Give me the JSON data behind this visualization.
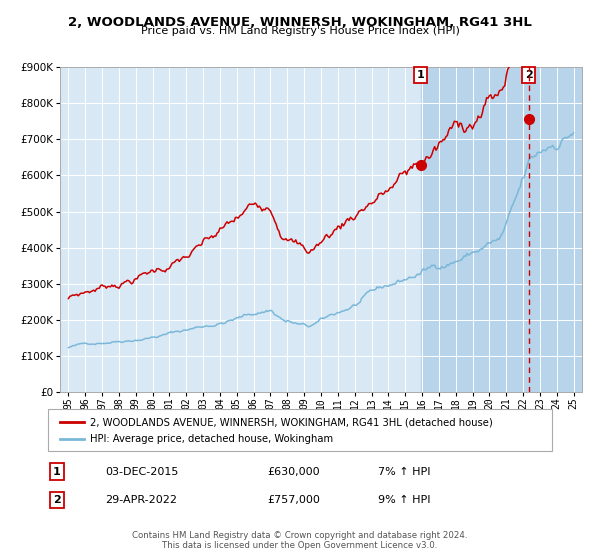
{
  "title1": "2, WOODLANDS AVENUE, WINNERSH, WOKINGHAM, RG41 3HL",
  "title2": "Price paid vs. HM Land Registry's House Price Index (HPI)",
  "legend_label1": "2, WOODLANDS AVENUE, WINNERSH, WOKINGHAM, RG41 3HL (detached house)",
  "legend_label2": "HPI: Average price, detached house, Wokingham",
  "annotation1_label": "1",
  "annotation1_date": "03-DEC-2015",
  "annotation1_price": "£630,000",
  "annotation1_hpi": "7% ↑ HPI",
  "annotation1_year": 2015.92,
  "annotation1_value": 630000,
  "annotation2_label": "2",
  "annotation2_date": "29-APR-2022",
  "annotation2_price": "£757,000",
  "annotation2_hpi": "9% ↑ HPI",
  "annotation2_year": 2022.33,
  "annotation2_value": 757000,
  "hpi_line_color": "#7ab8d9",
  "price_line_color": "#cc0000",
  "point_color": "#cc0000",
  "dashed_line_color": "#cc0000",
  "plot_bg_color": "#d9e8f5",
  "grid_color": "#ffffff",
  "shade_color": "#b8d4ea",
  "y_min": 0,
  "y_max": 900000,
  "x_min": 1994.5,
  "x_max": 2025.5,
  "footer": "Contains HM Land Registry data © Crown copyright and database right 2024.\nThis data is licensed under the Open Government Licence v3.0."
}
